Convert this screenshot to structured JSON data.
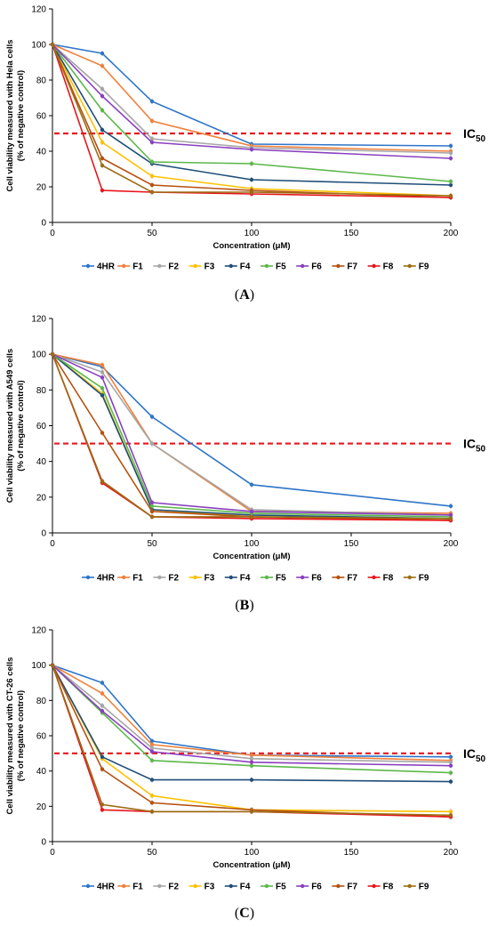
{
  "colors": {
    "4HR": "#2e75c9",
    "F1": "#f0813a",
    "F2": "#a6a6a6",
    "F3": "#ffc000",
    "F4": "#1f4e79",
    "F5": "#5cb84a",
    "F6": "#8a3fbf",
    "F7": "#b5510f",
    "F8": "#e8151b",
    "F9": "#9c6d14",
    "ic_line": "#e8151b"
  },
  "ic_label": {
    "main": "IC",
    "sub": "50"
  },
  "chart_data": [
    {
      "type": "line",
      "panel_label": "(A)",
      "panel_letter": "A",
      "xlabel": "Concentration (μM)",
      "ylabel_line1": "Cell viability measured with Hela cells",
      "ylabel_line2": "(% of negative control)",
      "x": [
        0,
        25,
        50,
        100,
        200
      ],
      "xlim": [
        0,
        200
      ],
      "ylim": [
        0,
        120
      ],
      "xticks": [
        0,
        50,
        100,
        150,
        200
      ],
      "yticks": [
        0,
        20,
        40,
        60,
        80,
        100,
        120
      ],
      "ic50": 50,
      "series": [
        {
          "name": "4HR",
          "values": [
            100,
            95,
            68,
            44,
            43
          ]
        },
        {
          "name": "F1",
          "values": [
            100,
            88,
            57,
            43,
            40
          ]
        },
        {
          "name": "F2",
          "values": [
            100,
            75,
            47,
            42,
            39
          ]
        },
        {
          "name": "F3",
          "values": [
            100,
            45,
            26,
            19,
            15
          ]
        },
        {
          "name": "F4",
          "values": [
            100,
            52,
            33,
            24,
            21
          ]
        },
        {
          "name": "F5",
          "values": [
            100,
            63,
            34,
            33,
            23
          ]
        },
        {
          "name": "F6",
          "values": [
            100,
            71,
            45,
            41,
            36
          ]
        },
        {
          "name": "F7",
          "values": [
            100,
            36,
            21,
            18,
            14
          ]
        },
        {
          "name": "F8",
          "values": [
            100,
            18,
            17,
            16,
            14
          ]
        },
        {
          "name": "F9",
          "values": [
            100,
            32,
            17,
            17,
            15
          ]
        }
      ]
    },
    {
      "type": "line",
      "panel_label": "(B)",
      "panel_letter": "B",
      "xlabel": "Concentration (μM)",
      "ylabel_line1": "Cell viability measured with A549 cells",
      "ylabel_line2": "(% of negative control)",
      "x": [
        0,
        25,
        50,
        100,
        200
      ],
      "xlim": [
        0,
        200
      ],
      "ylim": [
        0,
        120
      ],
      "xticks": [
        0,
        50,
        100,
        150,
        200
      ],
      "yticks": [
        0,
        20,
        40,
        60,
        80,
        100,
        120
      ],
      "ic50": 50,
      "series": [
        {
          "name": "4HR",
          "values": [
            100,
            93,
            65,
            27,
            15
          ]
        },
        {
          "name": "F1",
          "values": [
            100,
            94,
            50,
            12,
            11
          ]
        },
        {
          "name": "F2",
          "values": [
            100,
            90,
            50,
            13,
            10
          ]
        },
        {
          "name": "F3",
          "values": [
            100,
            78,
            13,
            9,
            8
          ]
        },
        {
          "name": "F4",
          "values": [
            100,
            77,
            13,
            10,
            8
          ]
        },
        {
          "name": "F5",
          "values": [
            100,
            81,
            15,
            11,
            9
          ]
        },
        {
          "name": "F6",
          "values": [
            100,
            87,
            17,
            12,
            10
          ]
        },
        {
          "name": "F7",
          "values": [
            100,
            56,
            12,
            9,
            7
          ]
        },
        {
          "name": "F8",
          "values": [
            100,
            28,
            9,
            8,
            7
          ]
        },
        {
          "name": "F9",
          "values": [
            100,
            29,
            9,
            9,
            8
          ]
        }
      ]
    },
    {
      "type": "line",
      "panel_label": "(C)",
      "panel_letter": "C",
      "xlabel": "Concentration (μM)",
      "ylabel_line1": "Cell viability measured with CT-26 cells",
      "ylabel_line2": "(% of negative control)",
      "x": [
        0,
        25,
        50,
        100,
        200
      ],
      "xlim": [
        0,
        200
      ],
      "ylim": [
        0,
        120
      ],
      "xticks": [
        0,
        50,
        100,
        150,
        200
      ],
      "yticks": [
        0,
        20,
        40,
        60,
        80,
        100,
        120
      ],
      "ic50": 50,
      "series": [
        {
          "name": "4HR",
          "values": [
            100,
            90,
            57,
            49,
            48
          ]
        },
        {
          "name": "F1",
          "values": [
            100,
            84,
            55,
            49,
            46
          ]
        },
        {
          "name": "F2",
          "values": [
            100,
            77,
            53,
            47,
            45
          ]
        },
        {
          "name": "F3",
          "values": [
            100,
            47,
            26,
            18,
            17
          ]
        },
        {
          "name": "F4",
          "values": [
            100,
            48,
            35,
            35,
            34
          ]
        },
        {
          "name": "F5",
          "values": [
            100,
            73,
            46,
            43,
            39
          ]
        },
        {
          "name": "F6",
          "values": [
            100,
            74,
            51,
            45,
            43
          ]
        },
        {
          "name": "F7",
          "values": [
            100,
            41,
            22,
            18,
            14
          ]
        },
        {
          "name": "F8",
          "values": [
            100,
            18,
            17,
            17,
            14
          ]
        },
        {
          "name": "F9",
          "values": [
            100,
            21,
            17,
            17,
            15
          ]
        }
      ]
    }
  ]
}
